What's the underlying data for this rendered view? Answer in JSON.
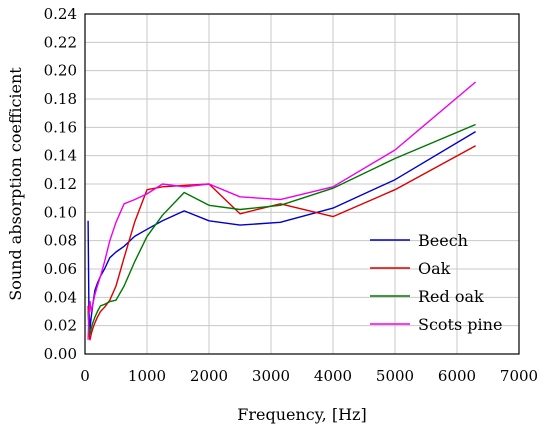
{
  "chart_data": {
    "type": "line",
    "title": "",
    "xlabel": "Frequency, [Hz]",
    "ylabel": "Sound absorption coefficient",
    "xlim": [
      0,
      7000
    ],
    "ylim": [
      0,
      0.24
    ],
    "x_ticks": [
      "0",
      "1000",
      "2000",
      "3000",
      "4000",
      "5000",
      "6000",
      "7000"
    ],
    "y_ticks": [
      "0.00",
      "0.02",
      "0.04",
      "0.06",
      "0.08",
      "0.10",
      "0.12",
      "0.14",
      "0.16",
      "0.18",
      "0.20",
      "0.22",
      "0.24"
    ],
    "grid": true,
    "legend_position": "bottom-right",
    "series": [
      {
        "name": "Beech",
        "color": "#0000cc",
        "x": [
          50,
          63,
          80,
          100,
          125,
          160,
          200,
          250,
          315,
          400,
          500,
          630,
          800,
          1000,
          1250,
          1600,
          2000,
          2500,
          3150,
          4000,
          5000,
          6300
        ],
        "y": [
          0.094,
          0.032,
          0.018,
          0.026,
          0.035,
          0.045,
          0.05,
          0.055,
          0.06,
          0.068,
          0.072,
          0.076,
          0.083,
          0.088,
          0.094,
          0.101,
          0.094,
          0.091,
          0.093,
          0.103,
          0.123,
          0.157
        ]
      },
      {
        "name": "Oak",
        "color": "#dd0000",
        "x": [
          50,
          63,
          80,
          100,
          125,
          160,
          200,
          250,
          315,
          400,
          500,
          630,
          800,
          1000,
          1250,
          1600,
          2000,
          2500,
          3150,
          4000,
          5000,
          6300
        ],
        "y": [
          0.034,
          0.015,
          0.01,
          0.014,
          0.018,
          0.022,
          0.026,
          0.03,
          0.033,
          0.038,
          0.048,
          0.068,
          0.093,
          0.116,
          0.118,
          0.119,
          0.12,
          0.099,
          0.106,
          0.097,
          0.116,
          0.147
        ]
      },
      {
        "name": "Red oak",
        "color": "#007700",
        "x": [
          50,
          63,
          80,
          100,
          125,
          160,
          200,
          250,
          315,
          400,
          500,
          630,
          800,
          1000,
          1250,
          1600,
          2000,
          2500,
          3150,
          4000,
          5000,
          6300
        ],
        "y": [
          0.03,
          0.02,
          0.014,
          0.018,
          0.022,
          0.026,
          0.03,
          0.034,
          0.035,
          0.037,
          0.038,
          0.048,
          0.065,
          0.083,
          0.098,
          0.114,
          0.105,
          0.102,
          0.105,
          0.117,
          0.138,
          0.162
        ]
      },
      {
        "name": "Scots pine",
        "color": "#ee00ee",
        "x": [
          50,
          63,
          80,
          100,
          125,
          160,
          200,
          250,
          315,
          400,
          500,
          630,
          800,
          1000,
          1250,
          1600,
          2000,
          2500,
          3150,
          4000,
          5000,
          6300
        ],
        "y": [
          0.01,
          0.028,
          0.037,
          0.03,
          0.035,
          0.042,
          0.048,
          0.055,
          0.065,
          0.08,
          0.093,
          0.106,
          0.109,
          0.113,
          0.12,
          0.118,
          0.12,
          0.111,
          0.109,
          0.118,
          0.144,
          0.192
        ]
      }
    ]
  }
}
